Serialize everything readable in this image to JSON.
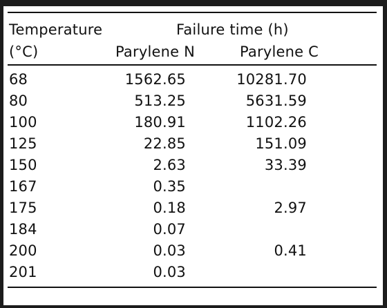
{
  "header": {
    "temperature": "Temperature",
    "unit": "(°C)",
    "failure_time": "Failure time (h)",
    "parylene_n": "Parylene N",
    "parylene_c": "Parylene C"
  },
  "rows": [
    {
      "temp": "68",
      "n": "1562.65",
      "c": "10281.70"
    },
    {
      "temp": "80",
      "n": "513.25",
      "c": "5631.59"
    },
    {
      "temp": "100",
      "n": "180.91",
      "c": "1102.26"
    },
    {
      "temp": "125",
      "n": "22.85",
      "c": "151.09"
    },
    {
      "temp": "150",
      "n": "2.63",
      "c": "33.39"
    },
    {
      "temp": "167",
      "n": "0.35",
      "c": ""
    },
    {
      "temp": "175",
      "n": "0.18",
      "c": "2.97"
    },
    {
      "temp": "184",
      "n": "0.07",
      "c": ""
    },
    {
      "temp": "200",
      "n": "0.03",
      "c": "0.41"
    },
    {
      "temp": "201",
      "n": "0.03",
      "c": ""
    }
  ]
}
